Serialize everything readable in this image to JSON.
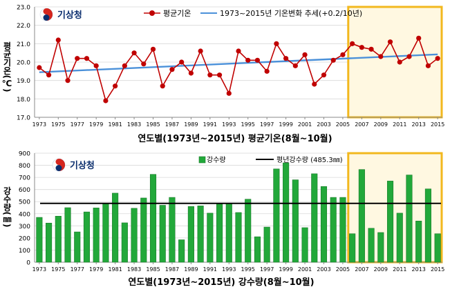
{
  "charts": {
    "temp": {
      "ylabel": "평균기온(℃)",
      "caption": "연도별(1973년~2015년)  평균기온(8월~10월)",
      "logo_text": "기상청"
    },
    "precip": {
      "ylabel": "강수량(㎜)",
      "caption": "연도별(1973년~2015년)  강수량(8월~10월)",
      "logo_text": "기상청"
    }
  },
  "colors": {
    "temp_line": "#c00000",
    "trend_line": "#4a90d9",
    "bar_fill": "#22a83a",
    "bar_stroke": "#1a7a2a",
    "highlight_fill": "#fff8e1",
    "highlight_stroke": "#f2b81e",
    "grid": "#d9d9d9",
    "logo_navy": "#0b2e6e",
    "logo_red": "#d6261e"
  },
  "chart_data": [
    {
      "type": "line",
      "x": [
        1973,
        1974,
        1975,
        1976,
        1977,
        1978,
        1979,
        1980,
        1981,
        1982,
        1983,
        1984,
        1985,
        1986,
        1987,
        1988,
        1989,
        1990,
        1991,
        1992,
        1993,
        1994,
        1995,
        1996,
        1997,
        1998,
        1999,
        2000,
        2001,
        2002,
        2003,
        2004,
        2005,
        2006,
        2007,
        2008,
        2009,
        2010,
        2011,
        2012,
        2013,
        2014,
        2015
      ],
      "series": [
        {
          "name": "평균기온",
          "values": [
            19.7,
            19.3,
            21.2,
            19.0,
            20.2,
            20.2,
            19.8,
            17.9,
            18.7,
            19.8,
            20.5,
            19.9,
            20.7,
            18.7,
            19.6,
            20.0,
            19.4,
            20.6,
            19.3,
            19.3,
            18.3,
            20.6,
            20.1,
            20.1,
            19.5,
            21.0,
            20.2,
            19.8,
            20.4,
            18.8,
            19.3,
            20.1,
            20.4,
            21.0,
            20.8,
            20.7,
            20.3,
            21.1,
            20.0,
            20.3,
            21.3,
            19.8,
            20.2
          ]
        },
        {
          "name": "1973~2015년 기온변화 추세(+0.2/10년)",
          "trend": [
            [
              1973,
              19.45
            ],
            [
              2015,
              20.42
            ]
          ]
        }
      ],
      "ylim": [
        17.0,
        23.0
      ],
      "yticks": [
        "17.0",
        "18.0",
        "19.0",
        "20.0",
        "21.0",
        "22.0",
        "23.0"
      ],
      "xticks": [
        "1973",
        "1975",
        "1977",
        "1979",
        "1981",
        "1983",
        "1985",
        "1987",
        "1989",
        "1991",
        "1993",
        "1995",
        "1997",
        "1999",
        "2001",
        "2003",
        "2005",
        "2007",
        "2009",
        "2011",
        "2013",
        "2015"
      ],
      "highlight_range": [
        2006,
        2015
      ],
      "grid": true,
      "legend": "top"
    },
    {
      "type": "bar",
      "x": [
        1973,
        1974,
        1975,
        1976,
        1977,
        1978,
        1979,
        1980,
        1981,
        1982,
        1983,
        1984,
        1985,
        1986,
        1987,
        1988,
        1989,
        1990,
        1991,
        1992,
        1993,
        1994,
        1995,
        1996,
        1997,
        1998,
        1999,
        2000,
        2001,
        2002,
        2003,
        2004,
        2005,
        2006,
        2007,
        2008,
        2009,
        2010,
        2011,
        2012,
        2013,
        2014,
        2015
      ],
      "series": [
        {
          "name": "강수량",
          "values": [
            370,
            323,
            380,
            450,
            250,
            415,
            448,
            485,
            570,
            325,
            445,
            530,
            725,
            470,
            535,
            185,
            460,
            465,
            405,
            480,
            485,
            410,
            520,
            210,
            290,
            770,
            820,
            680,
            285,
            730,
            625,
            535,
            535,
            235,
            765,
            280,
            245,
            670,
            405,
            720,
            340,
            605,
            235
          ]
        },
        {
          "name": "평년강수량 (485.3㎜)",
          "value": 485.3
        }
      ],
      "ylim": [
        0,
        900
      ],
      "yticks": [
        "0",
        "100",
        "200",
        "300",
        "400",
        "500",
        "600",
        "700",
        "800",
        "900"
      ],
      "xticks": [
        "1973",
        "1975",
        "1977",
        "1979",
        "1981",
        "1983",
        "1985",
        "1987",
        "1989",
        "1991",
        "1993",
        "1995",
        "1997",
        "1999",
        "2001",
        "2003",
        "2005",
        "2007",
        "2009",
        "2011",
        "2013",
        "2015"
      ],
      "highlight_range": [
        2006,
        2015
      ],
      "grid": true,
      "legend": "top"
    }
  ]
}
